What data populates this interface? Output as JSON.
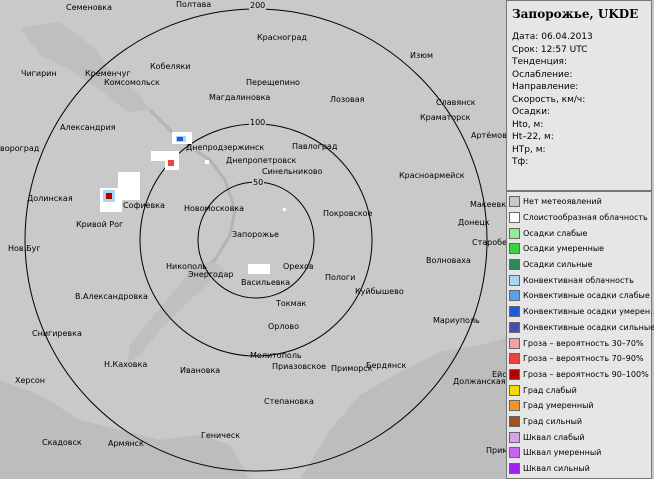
{
  "station": {
    "title": "Запорожье, UKDE",
    "fields": [
      {
        "label": "Дата:",
        "value": "06.04.2013"
      },
      {
        "label": "Срок:",
        "value": "12:57 UTC"
      },
      {
        "label": "Тенденция:",
        "value": ""
      },
      {
        "label": "Ослабление:",
        "value": ""
      },
      {
        "label": "Направление:",
        "value": ""
      },
      {
        "label": "Скорость, км/ч:",
        "value": ""
      },
      {
        "label": "Осадки:",
        "value": ""
      },
      {
        "label": "Hto, м:",
        "value": ""
      },
      {
        "label": "Ht–22, м:",
        "value": ""
      },
      {
        "label": "HTр, м:",
        "value": ""
      },
      {
        "label": "Тф:",
        "value": ""
      }
    ]
  },
  "legend": [
    {
      "label": "Нет метеоявлений",
      "color": "#c8c8c8"
    },
    {
      "label": "Слоистообразная облачность",
      "color": "#ffffff"
    },
    {
      "label": "Осадки слабые",
      "color": "#90ee90"
    },
    {
      "label": "Осадки умеренные",
      "color": "#3cd23c"
    },
    {
      "label": "Осадки сильные",
      "color": "#2e8b57"
    },
    {
      "label": "Конвективная облачность",
      "color": "#a8d8f0"
    },
    {
      "label": "Конвективные осадки слабые",
      "color": "#5aa0e6"
    },
    {
      "label": "Конвективные осадки умерен.",
      "color": "#1e5adc"
    },
    {
      "label": "Конвективные осадки сильные",
      "color": "#4b4bb4"
    },
    {
      "label": "Гроза – вероятность 30–70%",
      "color": "#f4a0a0"
    },
    {
      "label": "Гроза – вероятность 70–90%",
      "color": "#f04040"
    },
    {
      "label": "Гроза – вероятность 90–100%",
      "color": "#b40000"
    },
    {
      "label": "Град слабый",
      "color": "#f0dc00"
    },
    {
      "label": "Град умеренный",
      "color": "#f09628"
    },
    {
      "label": "Град сильный",
      "color": "#a0501e"
    },
    {
      "label": "Шквал слабый",
      "color": "#dca0f0"
    },
    {
      "label": "Шквал умеренный",
      "color": "#c864f0"
    },
    {
      "label": "Шквал сильный",
      "color": "#a020f0"
    }
  ],
  "range_labels": [
    "200",
    "100",
    "50"
  ],
  "cities": [
    "Семеновка",
    "Полтава",
    "Красноград",
    "Изюм",
    "Чигирин",
    "Кременчуг",
    "Кобеляки",
    "Комсомольск",
    "Перещепино",
    "Магдалиновка",
    "Лозовая",
    "Славянск",
    "Краматорск",
    "Артёмовск",
    "Александрия",
    "Днепродзержинск",
    "Павлоград",
    "Днепропетровск",
    "Синельниково",
    "вороград",
    "Красноармейск",
    "Долинская",
    "Софиевка",
    "Кривой Рог",
    "Новомосковка",
    "Покровское",
    "Макеевка",
    "Донецк",
    "Старобешево",
    "Нов.Буг",
    "Запорожье",
    "Никополь",
    "Энергодар",
    "Васильевка",
    "Орехов",
    "Пологи",
    "Волноваха",
    "Куйбышево",
    "В.Александровка",
    "Токмак",
    "Снигиревка",
    "Орлово",
    "Мариуполь",
    "Н.Каховка",
    "Мелитополь",
    "Херсон",
    "Ивановка",
    "Приазовское",
    "Приморск",
    "Бердянск",
    "Ейск",
    "Должанская",
    "Степановка",
    "Скадовск",
    "Армянск",
    "Геническ",
    "Примо"
  ]
}
